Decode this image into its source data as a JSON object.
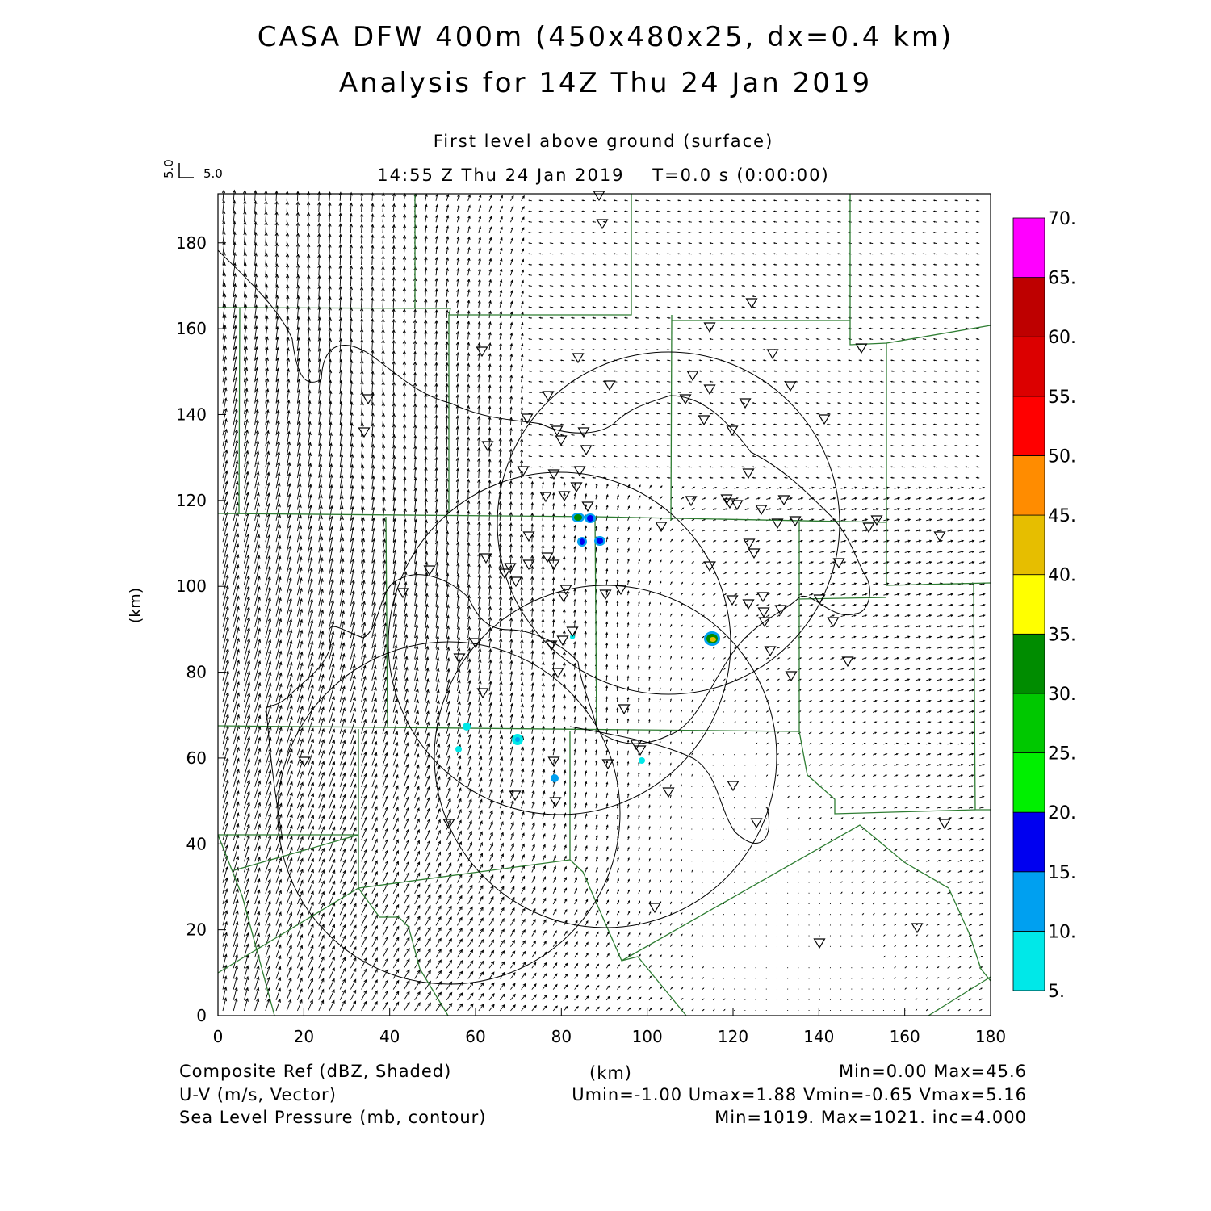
{
  "title_line1": "CASA DFW 400m (450x480x25, dx=0.4 km)",
  "title_line2": "Analysis for 14Z Thu 24 Jan 2019",
  "subtitle": "First level above ground (surface)",
  "valid_time": "14:55 Z Thu 24 Jan 2019    T=0.0 s (0:00:00)",
  "vector_scale": {
    "u_label": "5.0",
    "v_label": "5.0"
  },
  "x_axis": {
    "label": "(km)",
    "ticks": [
      "0",
      "20",
      "40",
      "60",
      "80",
      "100",
      "120",
      "140",
      "160",
      "180"
    ]
  },
  "y_axis": {
    "label": "(km)",
    "ticks": [
      "0",
      "20",
      "40",
      "60",
      "80",
      "100",
      "120",
      "140",
      "160",
      "180"
    ]
  },
  "colorbar": {
    "labels": [
      "5.",
      "10.",
      "15.",
      "20.",
      "25.",
      "30.",
      "35.",
      "40.",
      "45.",
      "50.",
      "55.",
      "60.",
      "65.",
      "70."
    ],
    "colors": [
      "#00e8e8",
      "#00a0f0",
      "#0000f0",
      "#00f000",
      "#00c800",
      "#008c00",
      "#ffff00",
      "#e6be00",
      "#ff8c00",
      "#ff0000",
      "#dc0000",
      "#be0000",
      "#ff00ff"
    ]
  },
  "footer": {
    "line1_left": "Composite Ref (dBZ, Shaded)",
    "line1_mid": "(km)",
    "line1_right": "Min=0.00 Max=45.6",
    "line2_left": "U-V (m/s, Vector)",
    "line2_right": "Umin=-1.00 Umax=1.88 Vmin=-0.65 Vmax=5.16",
    "line3_left": "Sea Level Pressure (mb, contour)",
    "line3_right": "Min=1019. Max=1021. inc=4.000"
  },
  "colors": {
    "county_lines": "#2e7d32",
    "contours": "#000000",
    "frame": "#000000"
  },
  "icons": {
    "station_marker": "down-triangle-icon",
    "wind_arrow": "arrow-icon"
  }
}
